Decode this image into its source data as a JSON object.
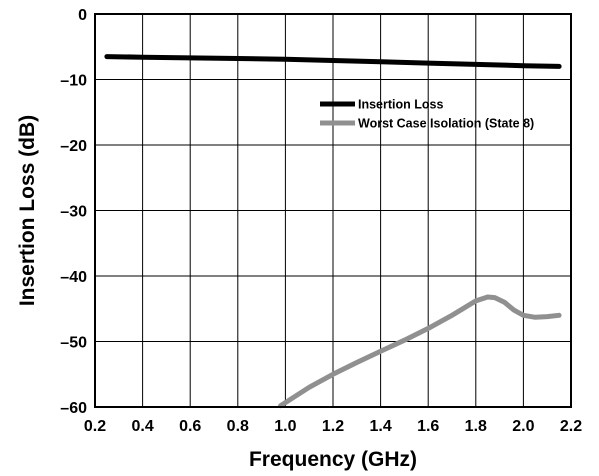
{
  "chart_data": {
    "type": "line",
    "title": "",
    "xlabel": "Frequency (GHz)",
    "ylabel": "Insertion Loss (dB)",
    "xlim": [
      0.2,
      2.2
    ],
    "ylim": [
      -60,
      0
    ],
    "xticks": [
      0.2,
      0.4,
      0.6,
      0.8,
      1.0,
      1.2,
      1.4,
      1.6,
      1.8,
      2.0,
      2.2
    ],
    "xtick_labels": [
      "0.2",
      "0.4",
      "0.6",
      "0.8",
      "1.0",
      "1.2",
      "1.4",
      "1.6",
      "1.8",
      "2.0",
      "2.2"
    ],
    "yticks": [
      0,
      -10,
      -20,
      -30,
      -40,
      -50,
      -60
    ],
    "ytick_labels": [
      "0",
      "–10",
      "–20",
      "–30",
      "–40",
      "–50",
      "–60"
    ],
    "grid": true,
    "legend_position": "upper-right",
    "series": [
      {
        "name": "Insertion Loss",
        "color": "#000000",
        "x": [
          0.25,
          0.4,
          0.6,
          0.8,
          1.0,
          1.2,
          1.4,
          1.6,
          1.8,
          2.0,
          2.15
        ],
        "y": [
          -6.5,
          -6.6,
          -6.7,
          -6.8,
          -6.9,
          -7.1,
          -7.3,
          -7.5,
          -7.7,
          -7.9,
          -8.0
        ]
      },
      {
        "name": "Worst Case Isolation (State 8)",
        "color": "#909090",
        "x": [
          0.98,
          1.1,
          1.2,
          1.3,
          1.4,
          1.5,
          1.6,
          1.7,
          1.8,
          1.85,
          1.88,
          1.92,
          1.96,
          2.0,
          2.05,
          2.1,
          2.15
        ],
        "y": [
          -59.8,
          -57.0,
          -55.0,
          -53.2,
          -51.5,
          -49.8,
          -48.0,
          -46.0,
          -43.8,
          -43.2,
          -43.3,
          -44.0,
          -45.2,
          -46.0,
          -46.3,
          -46.2,
          -46.0
        ]
      }
    ]
  }
}
